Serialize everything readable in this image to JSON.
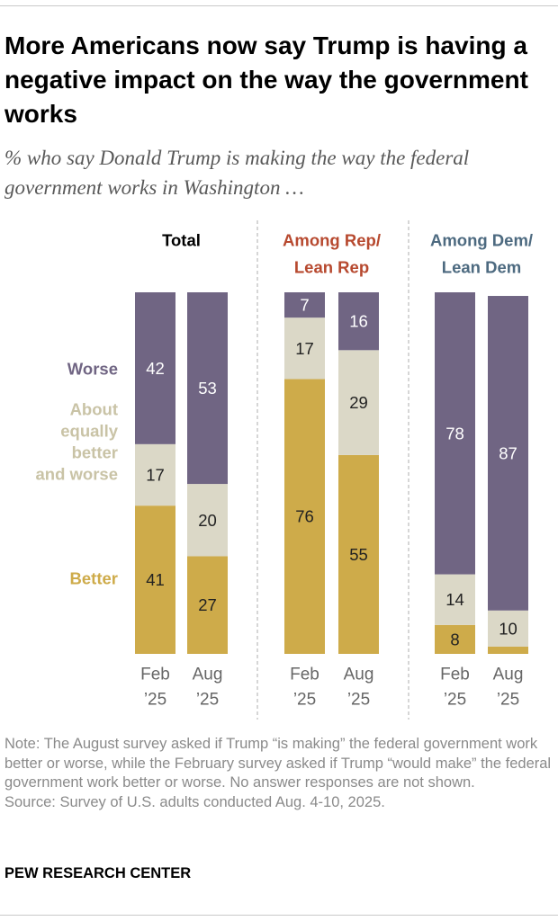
{
  "title": "More Americans now say Trump is having a negative impact on the way the government works",
  "subtitle": "% who say Donald Trump is making the way the federal government works in Washington …",
  "colors": {
    "worse": "#706583",
    "equal": "#dbd8c7",
    "better": "#ceab4a",
    "rep_header": "#b7492f",
    "dem_header": "#4d6a80",
    "total_header": "#000000",
    "label_text": "#555555",
    "divider": "#bbbbbb"
  },
  "chart_data": {
    "type": "bar",
    "stacked": true,
    "orientation": "vertical",
    "scale": [
      0,
      100
    ],
    "series_labels": {
      "worse": "Worse",
      "equal": "About equally better and worse",
      "better": "Better"
    },
    "series_label_lines": {
      "equal": [
        "About",
        "equally",
        "better",
        "and worse"
      ]
    },
    "groups": [
      {
        "name": "Total",
        "header_lines": [
          "Total"
        ],
        "header_color": "#000000",
        "bars": [
          {
            "label_lines": [
              "Feb",
              "’25"
            ],
            "better": 41,
            "equal": 17,
            "worse": 42
          },
          {
            "label_lines": [
              "Aug",
              "’25"
            ],
            "better": 27,
            "equal": 20,
            "worse": 53
          }
        ]
      },
      {
        "name": "Among Rep/ Lean Rep",
        "header_lines": [
          "Among Rep/",
          "Lean Rep"
        ],
        "header_color": "#b7492f",
        "bars": [
          {
            "label_lines": [
              "Feb",
              "’25"
            ],
            "better": 76,
            "equal": 17,
            "worse": 7
          },
          {
            "label_lines": [
              "Aug",
              "’25"
            ],
            "better": 55,
            "equal": 29,
            "worse": 16
          }
        ]
      },
      {
        "name": "Among Dem/ Lean Dem",
        "header_lines": [
          "Among Dem/",
          "Lean Dem"
        ],
        "header_color": "#4d6a80",
        "bars": [
          {
            "label_lines": [
              "Feb",
              "’25"
            ],
            "better": 8,
            "equal": 14,
            "worse": 78
          },
          {
            "label_lines": [
              "Aug",
              "’25"
            ],
            "better": null,
            "better_shown": 2,
            "equal": 10,
            "worse": 87
          }
        ]
      }
    ]
  },
  "note": [
    "Note: The August survey asked if Trump “is making” the federal government work better or worse, while the February survey asked if Trump “would make” the federal government work better or worse. No answer responses are not shown.",
    "Source: Survey of U.S. adults conducted Aug. 4-10, 2025."
  ],
  "brand": "PEW RESEARCH CENTER"
}
